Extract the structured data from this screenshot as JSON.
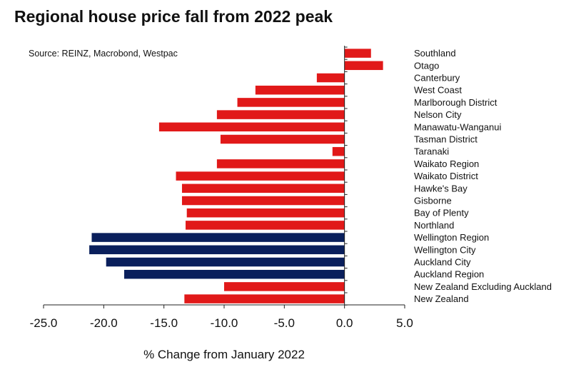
{
  "title": "Regional house price fall from 2022 peak",
  "source": "Source: REINZ, Macrobond, Westpac",
  "colors": {
    "regional": "#e11919",
    "city": "#0a1f5c",
    "axis": "#222222"
  },
  "chart_data": {
    "type": "bar",
    "orientation": "horizontal",
    "title": "Regional house price fall from 2022 peak",
    "xlabel": "% Change from January 2022",
    "ylabel": "",
    "xlim": [
      -25,
      5
    ],
    "xticks": [
      -25,
      -20,
      -15,
      -10,
      -5,
      0,
      5
    ],
    "xtick_labels": [
      "-25.0",
      "-20.0",
      "-15.0",
      "-10.0",
      "-5.0",
      "0.0",
      "5.0"
    ],
    "categories": [
      "Southland",
      "Otago",
      "Canterbury",
      "West Coast",
      "Marlborough District",
      "Nelson City",
      "Manawatu-Wanganui",
      "Tasman District",
      "Taranaki",
      "Waikato Region",
      "Waikato District",
      "Hawke's Bay",
      "Gisborne",
      "Bay of Plenty",
      "Northland",
      "Wellington Region",
      "Wellington City",
      "Auckland City",
      "Auckland Region",
      "New Zealand Excluding Auckland",
      "New Zealand"
    ],
    "values": [
      2.2,
      3.2,
      -2.3,
      -7.4,
      -8.9,
      -10.6,
      -15.4,
      -10.3,
      -1.0,
      -10.6,
      -14.0,
      -13.5,
      -13.5,
      -13.1,
      -13.2,
      -21.0,
      -21.2,
      -19.8,
      -18.3,
      -10.0,
      -13.3
    ],
    "highlight": [
      false,
      false,
      false,
      false,
      false,
      false,
      false,
      false,
      false,
      false,
      false,
      false,
      false,
      false,
      false,
      true,
      true,
      true,
      true,
      false,
      false
    ]
  }
}
